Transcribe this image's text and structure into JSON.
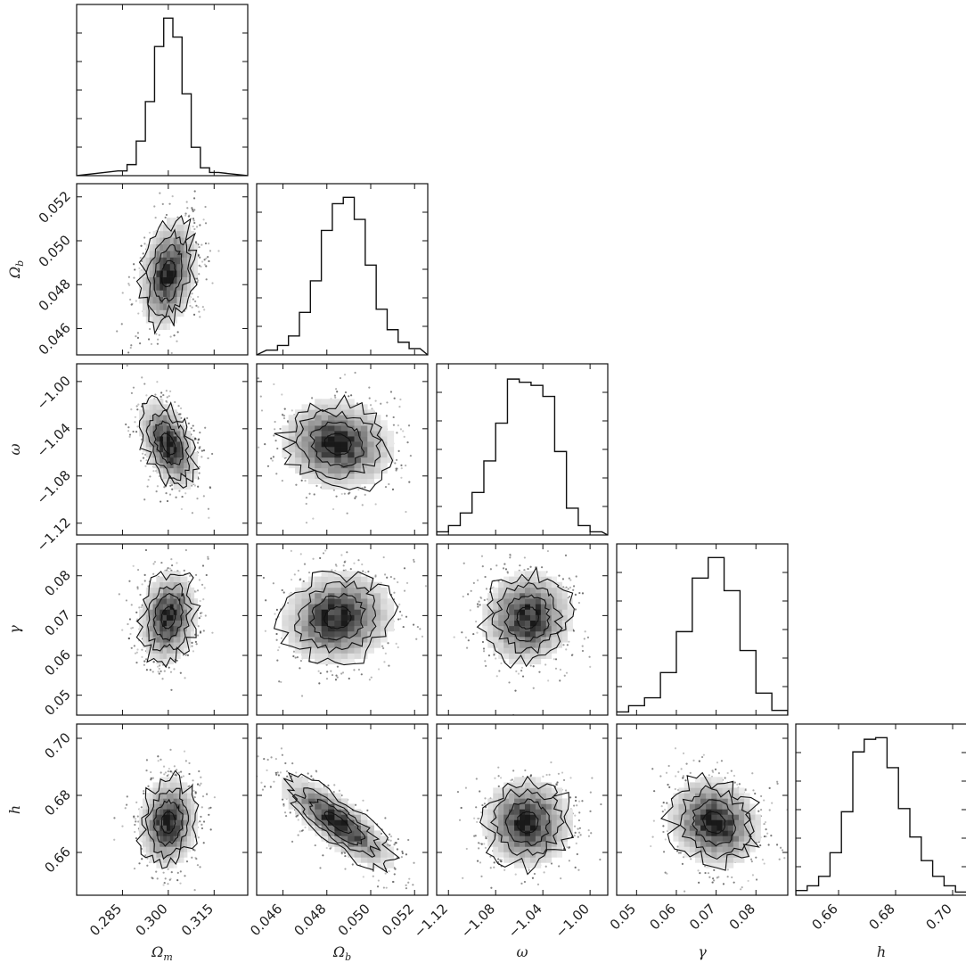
{
  "chart_data": {
    "type": "corner",
    "parameters": [
      {
        "key": "om",
        "label": "Ω",
        "sub": "m",
        "range": [
          0.27,
          0.326
        ],
        "ticks": [
          0.285,
          0.3,
          0.315
        ],
        "tick_labels": [
          "0.285",
          "0.300",
          "0.315"
        ]
      },
      {
        "key": "ob",
        "label": "Ω",
        "sub": "b",
        "range": [
          0.0448,
          0.0526
        ],
        "ticks": [
          0.046,
          0.048,
          0.05,
          0.052
        ],
        "tick_labels": [
          "0.046",
          "0.048",
          "0.050",
          "0.052"
        ]
      },
      {
        "key": "w",
        "label": "ω",
        "sub": "",
        "range": [
          -1.13,
          -0.985
        ],
        "ticks": [
          -1.12,
          -1.08,
          -1.04,
          -1.0
        ],
        "tick_labels": [
          "−1.12",
          "−1.08",
          "−1.04",
          "−1.00"
        ]
      },
      {
        "key": "g",
        "label": "γ",
        "sub": "",
        "range": [
          0.045,
          0.088
        ],
        "ticks": [
          0.05,
          0.06,
          0.07,
          0.08
        ],
        "tick_labels": [
          "0.05",
          "0.06",
          "0.07",
          "0.08"
        ]
      },
      {
        "key": "h",
        "label": "h",
        "sub": "",
        "range": [
          0.645,
          0.705
        ],
        "ticks": [
          0.66,
          0.68,
          0.7
        ],
        "tick_labels": [
          "0.66",
          "0.68",
          "0.70"
        ]
      }
    ],
    "histograms": [
      {
        "param": "Ω_m",
        "bin_centers": [
          0.285,
          0.288,
          0.291,
          0.294,
          0.297,
          0.3,
          0.303,
          0.306,
          0.309,
          0.312,
          0.315
        ],
        "counts": [
          0.03,
          0.07,
          0.22,
          0.47,
          0.82,
          1.0,
          0.88,
          0.52,
          0.18,
          0.05,
          0.02
        ]
      },
      {
        "param": "Ω_b",
        "bin_centers": [
          0.0455,
          0.046,
          0.0465,
          0.047,
          0.0475,
          0.048,
          0.0485,
          0.049,
          0.0495,
          0.05,
          0.0505,
          0.051,
          0.0515,
          0.052
        ],
        "counts": [
          0.03,
          0.06,
          0.12,
          0.27,
          0.47,
          0.79,
          0.96,
          1.0,
          0.86,
          0.57,
          0.29,
          0.16,
          0.08,
          0.04
        ]
      },
      {
        "param": "ω",
        "bin_centers": [
          -1.125,
          -1.115,
          -1.105,
          -1.095,
          -1.085,
          -1.075,
          -1.065,
          -1.055,
          -1.045,
          -1.035,
          -1.025,
          -1.015,
          -1.005,
          -0.995
        ],
        "counts": [
          0.02,
          0.06,
          0.14,
          0.27,
          0.47,
          0.71,
          0.99,
          0.97,
          0.95,
          0.88,
          0.53,
          0.17,
          0.06,
          0.02
        ]
      },
      {
        "param": "γ",
        "bin_centers": [
          0.046,
          0.05,
          0.054,
          0.058,
          0.062,
          0.066,
          0.07,
          0.074,
          0.078,
          0.082,
          0.086
        ],
        "counts": [
          0.02,
          0.06,
          0.11,
          0.27,
          0.53,
          0.87,
          1.0,
          0.79,
          0.41,
          0.14,
          0.03
        ]
      },
      {
        "param": "h",
        "bin_centers": [
          0.647,
          0.651,
          0.655,
          0.659,
          0.663,
          0.667,
          0.671,
          0.675,
          0.679,
          0.683,
          0.687,
          0.691,
          0.695,
          0.699,
          0.703
        ],
        "counts": [
          0.03,
          0.06,
          0.12,
          0.27,
          0.53,
          0.91,
          0.99,
          1.0,
          0.81,
          0.55,
          0.37,
          0.22,
          0.12,
          0.06,
          0.02
        ]
      }
    ],
    "posterior": {
      "means": [
        0.3,
        0.0485,
        -1.053,
        0.0695,
        0.6705
      ],
      "sigmas": [
        0.0045,
        0.0012,
        0.018,
        0.0055,
        0.0075
      ],
      "correlations": [
        [
          "Ω_b",
          "Ω_m",
          0.25
        ],
        [
          "ω",
          "Ω_m",
          -0.45
        ],
        [
          "ω",
          "Ω_b",
          -0.1
        ],
        [
          "γ",
          "Ω_m",
          0.15
        ],
        [
          "γ",
          "Ω_b",
          0.1
        ],
        [
          "γ",
          "ω",
          0.05
        ],
        [
          "h",
          "Ω_m",
          0.1
        ],
        [
          "h",
          "Ω_b",
          -0.8
        ],
        [
          "h",
          "ω",
          0.0
        ],
        [
          "h",
          "γ",
          -0.15
        ]
      ],
      "contour_levels_sigma": [
        0.5,
        1.0,
        1.5,
        2.0
      ]
    }
  }
}
